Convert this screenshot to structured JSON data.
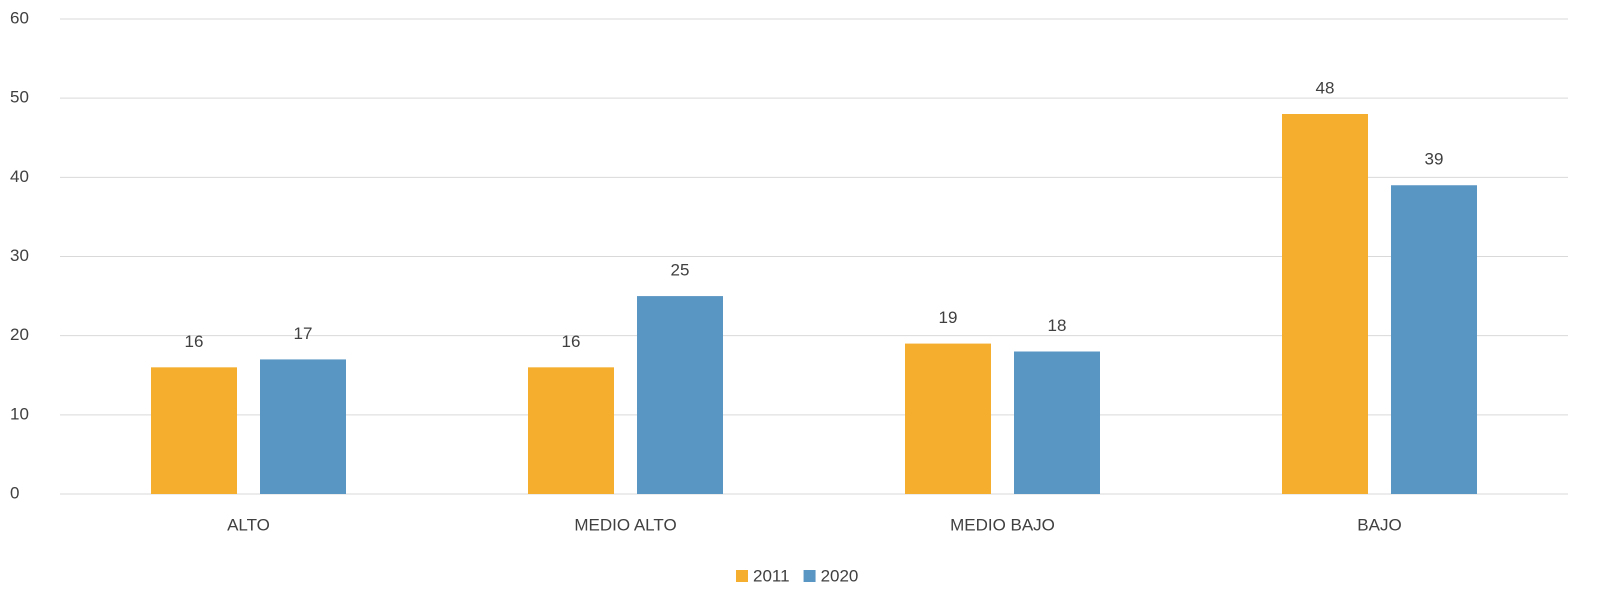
{
  "chart_data": {
    "type": "bar",
    "categories": [
      "ALTO",
      "MEDIO ALTO",
      "MEDIO BAJO",
      "BAJO"
    ],
    "series": [
      {
        "name": "2011",
        "color": "#f5ae2e",
        "values": [
          16,
          16,
          19,
          48
        ]
      },
      {
        "name": "2020",
        "color": "#5a96c4",
        "values": [
          17,
          25,
          18,
          39
        ]
      }
    ],
    "ylim": [
      0,
      60
    ],
    "yticks": [
      0,
      10,
      20,
      30,
      40,
      50,
      60
    ],
    "grid": true,
    "legend": "bottom"
  }
}
